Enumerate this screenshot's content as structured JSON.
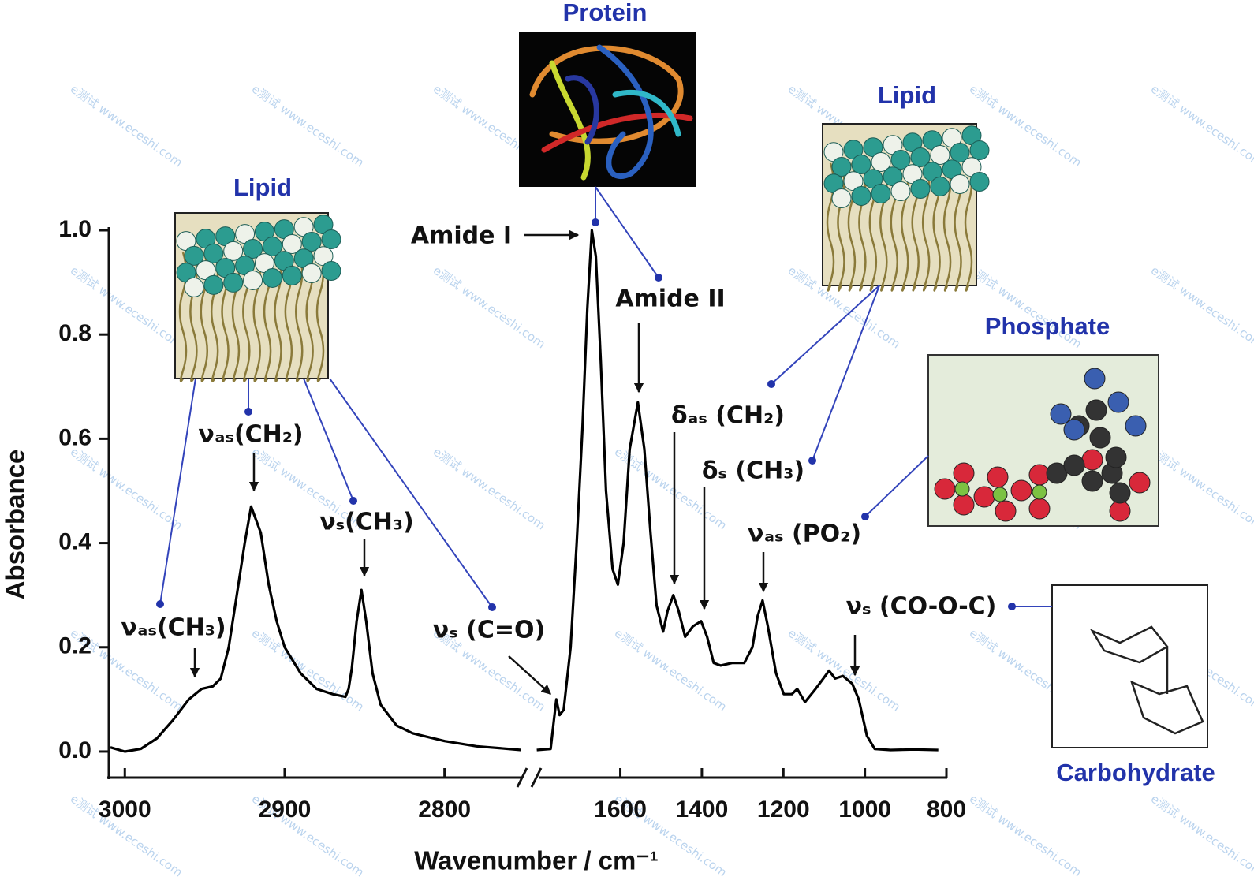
{
  "chart_data": {
    "type": "line",
    "ylabel": "Absorbance",
    "xlabel": "Wavenumber / cm⁻¹",
    "color": "#000000",
    "ylim": [
      -0.05,
      1.0
    ],
    "yticks": [
      {
        "value": 0,
        "label": "0.0"
      },
      {
        "value": 0.2,
        "label": "0.2"
      },
      {
        "value": 0.4,
        "label": "0.4"
      },
      {
        "value": 0.6,
        "label": "0.6"
      },
      {
        "value": 0.8,
        "label": "0.8"
      },
      {
        "value": 1,
        "label": "1.0"
      }
    ],
    "segments": [
      {
        "xlim": [
          3010,
          2750
        ],
        "xticks": [
          3000,
          2900,
          2800
        ],
        "x": [
          3009,
          3000,
          2990,
          2980,
          2970,
          2960,
          2952,
          2945,
          2940,
          2935,
          2930,
          2925,
          2921,
          2915,
          2910,
          2905,
          2900,
          2890,
          2880,
          2870,
          2862,
          2860,
          2858,
          2855,
          2852,
          2849,
          2845,
          2840,
          2830,
          2820,
          2800,
          2780,
          2760,
          2752
        ],
        "values": [
          0.008,
          0.0,
          0.005,
          0.025,
          0.06,
          0.1,
          0.12,
          0.125,
          0.14,
          0.2,
          0.3,
          0.4,
          0.47,
          0.42,
          0.32,
          0.25,
          0.2,
          0.15,
          0.12,
          0.11,
          0.105,
          0.12,
          0.16,
          0.25,
          0.31,
          0.25,
          0.15,
          0.09,
          0.05,
          0.035,
          0.02,
          0.01,
          0.005,
          0.003
        ]
      },
      {
        "xlim": [
          1810,
          800
        ],
        "xticks": [
          1600,
          1400,
          1200,
          1000,
          800
        ],
        "x": [
          1805,
          1771,
          1763,
          1757,
          1749,
          1739,
          1722,
          1707,
          1693,
          1681,
          1670,
          1660,
          1648,
          1635,
          1619,
          1606,
          1592,
          1577,
          1557,
          1541,
          1526,
          1511,
          1495,
          1484,
          1470,
          1457,
          1441,
          1422,
          1402,
          1387,
          1371,
          1354,
          1325,
          1296,
          1276,
          1263,
          1251,
          1238,
          1218,
          1199,
          1179,
          1166,
          1147,
          1121,
          1102,
          1088,
          1073,
          1054,
          1031,
          1015,
          995,
          976,
          937,
          878,
          820
        ],
        "values": [
          0.003,
          0.005,
          0.06,
          0.1,
          0.07,
          0.08,
          0.2,
          0.4,
          0.62,
          0.85,
          1.0,
          0.95,
          0.75,
          0.5,
          0.35,
          0.32,
          0.4,
          0.58,
          0.67,
          0.58,
          0.42,
          0.28,
          0.23,
          0.27,
          0.3,
          0.27,
          0.22,
          0.24,
          0.25,
          0.22,
          0.17,
          0.165,
          0.17,
          0.17,
          0.2,
          0.26,
          0.29,
          0.24,
          0.15,
          0.11,
          0.11,
          0.12,
          0.095,
          0.12,
          0.14,
          0.155,
          0.14,
          0.145,
          0.13,
          0.1,
          0.03,
          0.005,
          0.003,
          0.004,
          0.003
        ]
      }
    ],
    "groups": [
      "Protein",
      "Lipid",
      "Lipid",
      "Phosphate",
      "Carbohydrate"
    ],
    "annotations": [
      "Amide I",
      "Amide II",
      "δₐₛ (CH₂)",
      "δₛ (CH₃)",
      "νₐₛ (PO₂)",
      "νₛ (CO-O-C)",
      "νₐₛ(CH₂)",
      "νₛ(CH₃)",
      "νₐₛ(CH₃)",
      "νₛ (C=O)"
    ]
  },
  "watermark": "e测试 www.eceshi.com"
}
